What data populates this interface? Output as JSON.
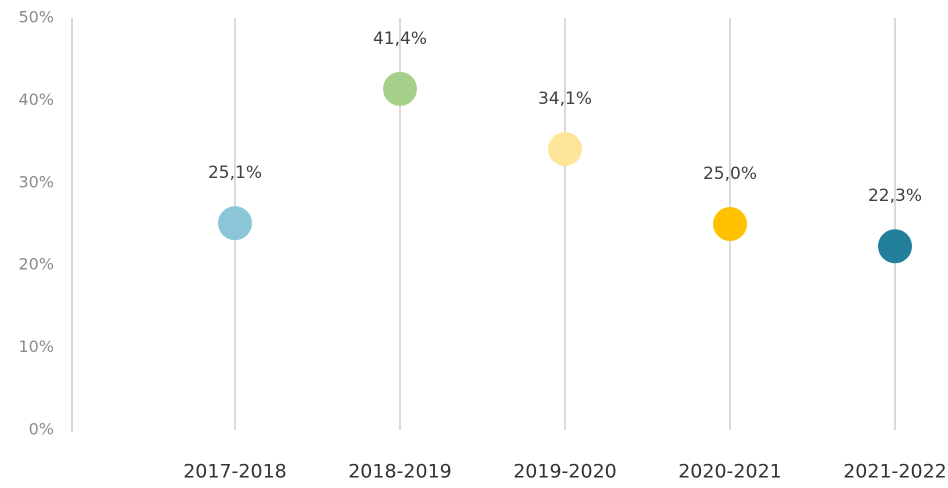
{
  "chart_data": {
    "type": "dot",
    "categories": [
      "2017-2018",
      "2018-2019",
      "2019-2020",
      "2020-2021",
      "2021-2022"
    ],
    "values": [
      25.1,
      41.4,
      34.1,
      25.0,
      22.3
    ],
    "value_labels": [
      "25,1%",
      "41,4%",
      "34,1%",
      "25,0%",
      "22,3%"
    ],
    "colors": [
      "#8ac6d8",
      "#a6d08a",
      "#fde699",
      "#ffc000",
      "#23809a"
    ],
    "ylim": [
      0,
      50
    ],
    "yticks": [
      {
        "value": 0,
        "label": "0%"
      },
      {
        "value": 10,
        "label": "10%"
      },
      {
        "value": 20,
        "label": "20%"
      },
      {
        "value": 30,
        "label": "30%"
      },
      {
        "value": 40,
        "label": "40%"
      },
      {
        "value": 50,
        "label": "50%"
      }
    ],
    "grid": false
  }
}
